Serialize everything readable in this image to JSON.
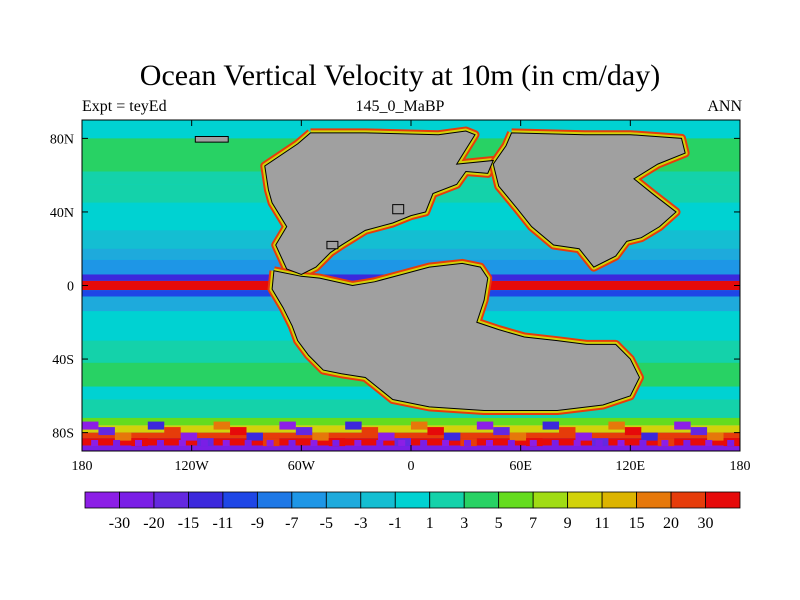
{
  "title": "Ocean Vertical Velocity at 10m (in cm/day)",
  "subtitle_left": "Expt = teyEd",
  "subtitle_center": "145_0_MaBP",
  "subtitle_right": "ANN",
  "map": {
    "projection": "cylindrical equidistant",
    "lon_range": [
      -180,
      180
    ],
    "lat_range": [
      -90,
      90
    ],
    "land_color": "#a0a0a0",
    "x_ticks": [
      {
        "value": -180,
        "label": "180"
      },
      {
        "value": -120,
        "label": "120W"
      },
      {
        "value": -60,
        "label": "60W"
      },
      {
        "value": 0,
        "label": "0"
      },
      {
        "value": 60,
        "label": "60E"
      },
      {
        "value": 120,
        "label": "120E"
      },
      {
        "value": 180,
        "label": "180"
      }
    ],
    "y_ticks": [
      {
        "value": 80,
        "label": "80N"
      },
      {
        "value": 40,
        "label": "40N"
      },
      {
        "value": 0,
        "label": "0"
      },
      {
        "value": -40,
        "label": "40S"
      },
      {
        "value": -80,
        "label": "80S"
      }
    ],
    "field_summary": {
      "background_level": 1,
      "equatorial_band_level": 30,
      "southern_ocean_level": 30
    }
  },
  "colorbar": {
    "label_values": [
      "-30",
      "-20",
      "-15",
      "-11",
      "-9",
      "-7",
      "-5",
      "-3",
      "-1",
      "1",
      "3",
      "5",
      "7",
      "9",
      "11",
      "15",
      "20",
      "30"
    ],
    "colors": [
      "#8c1ee6",
      "#7a1ee6",
      "#6428e0",
      "#3c28dc",
      "#1e46e6",
      "#1e78e6",
      "#1e96e6",
      "#1eaadc",
      "#14bed2",
      "#00d2d2",
      "#14d2aa",
      "#28d264",
      "#64dc1e",
      "#a0dc14",
      "#d2d20a",
      "#dcb400",
      "#e6780a",
      "#e63c0a",
      "#e60a0a"
    ]
  }
}
